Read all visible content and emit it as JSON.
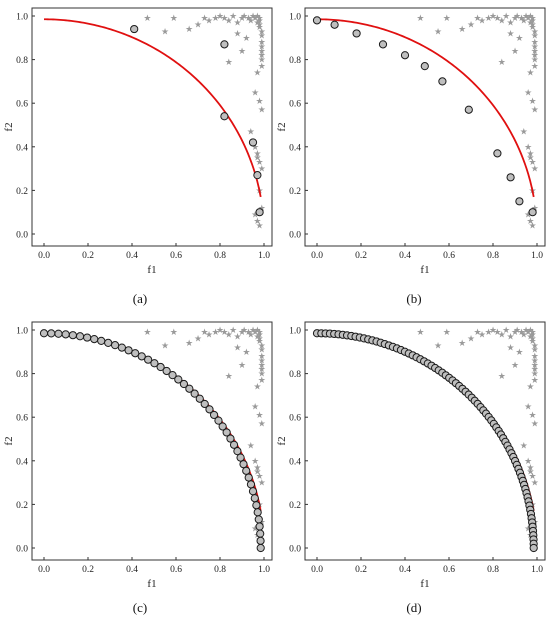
{
  "chart_data": [
    {
      "panel_label": "(a)",
      "type": "scatter",
      "xlabel": "f1",
      "ylabel": "f2",
      "xlim": [
        0,
        1
      ],
      "ylim": [
        0,
        1
      ],
      "x_ticks": [
        "0.0",
        "0.2",
        "0.4",
        "0.6",
        "0.8",
        "1.0"
      ],
      "y_ticks": [
        "0.0",
        "0.2",
        "0.4",
        "0.6",
        "0.8",
        "1.0"
      ],
      "curve": "pareto front f2 = sqrt(1 - f1^2) (approx.)",
      "circles": {
        "x": [
          0.41,
          0.82,
          0.82,
          0.95,
          0.97,
          0.98
        ],
        "y": [
          0.94,
          0.87,
          0.54,
          0.42,
          0.27,
          0.1
        ]
      }
    },
    {
      "panel_label": "(b)",
      "type": "scatter",
      "xlabel": "f1",
      "ylabel": "f2",
      "xlim": [
        0,
        1
      ],
      "ylim": [
        0,
        1
      ],
      "x_ticks": [
        "0.0",
        "0.2",
        "0.4",
        "0.6",
        "0.8",
        "1.0"
      ],
      "y_ticks": [
        "0.0",
        "0.2",
        "0.4",
        "0.6",
        "0.8",
        "1.0"
      ],
      "circles": {
        "x": [
          0.0,
          0.08,
          0.18,
          0.3,
          0.4,
          0.49,
          0.57,
          0.69,
          0.82,
          0.88,
          0.92,
          0.98
        ],
        "y": [
          0.98,
          0.96,
          0.92,
          0.87,
          0.82,
          0.77,
          0.7,
          0.57,
          0.37,
          0.26,
          0.15,
          0.1
        ]
      }
    },
    {
      "panel_label": "(c)",
      "type": "scatter",
      "xlabel": "f1",
      "ylabel": "f2",
      "xlim": [
        0,
        1
      ],
      "ylim": [
        0,
        1
      ],
      "x_ticks": [
        "0.0",
        "0.2",
        "0.4",
        "0.6",
        "0.8",
        "1.0"
      ],
      "y_ticks": [
        "0.0",
        "0.2",
        "0.4",
        "0.6",
        "0.8",
        "1.0"
      ],
      "circles_note": "dense circles along the red front"
    },
    {
      "panel_label": "(d)",
      "type": "scatter",
      "xlabel": "f1",
      "ylabel": "f2",
      "xlim": [
        0,
        1
      ],
      "ylim": [
        0,
        1
      ],
      "x_ticks": [
        "0.0",
        "0.2",
        "0.4",
        "0.6",
        "0.8",
        "1.0"
      ],
      "y_ticks": [
        "0.0",
        "0.2",
        "0.4",
        "0.6",
        "0.8",
        "1.0"
      ],
      "circles_note": "very dense circles along the red front"
    }
  ],
  "stars": {
    "x": [
      0.47,
      0.55,
      0.59,
      0.66,
      0.7,
      0.73,
      0.75,
      0.78,
      0.8,
      0.82,
      0.84,
      0.86,
      0.88,
      0.9,
      0.91,
      0.93,
      0.94,
      0.95,
      0.96,
      0.97,
      0.97,
      0.98,
      0.98,
      0.98,
      0.98,
      0.99,
      0.99,
      0.99,
      0.99,
      0.99,
      0.99,
      0.99,
      0.99,
      0.97,
      0.96,
      0.98,
      0.99,
      0.92,
      0.88,
      0.9,
      0.94,
      0.97,
      0.98,
      0.99,
      0.97,
      0.96,
      0.98,
      0.99,
      0.96,
      0.97,
      0.98,
      0.84
    ],
    "y": [
      0.99,
      0.93,
      0.99,
      0.94,
      0.96,
      0.99,
      0.98,
      0.99,
      1.0,
      0.99,
      0.98,
      1.0,
      0.97,
      0.99,
      1.0,
      0.99,
      0.98,
      1.0,
      0.99,
      1.0,
      0.97,
      0.99,
      0.98,
      0.96,
      0.95,
      0.93,
      0.91,
      0.88,
      0.86,
      0.84,
      0.82,
      0.8,
      0.77,
      0.74,
      0.65,
      0.61,
      0.57,
      0.9,
      0.92,
      0.84,
      0.47,
      0.35,
      0.33,
      0.3,
      0.37,
      0.4,
      0.2,
      0.12,
      0.09,
      0.06,
      0.04,
      0.79
    ]
  },
  "colors": {
    "curve": "#e01010",
    "circle_fill": "#bfbfbf",
    "circle_stroke": "#1a1a1a",
    "star": "#9a9a9a"
  }
}
